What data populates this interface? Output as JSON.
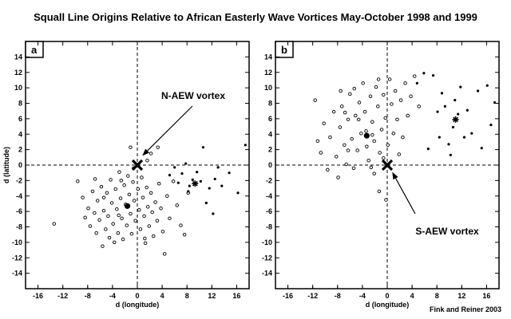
{
  "title": "Squall Line Origins Relative to African Easterly Wave Vortices May-October 1998 and 1999",
  "credit": "Fink and Reiner 2003",
  "chart_data": [
    {
      "type": "scatter",
      "panel": "a",
      "xlabel": "d (longitude)",
      "ylabel": "d (latitude)",
      "xlim": [
        -18,
        18
      ],
      "ylim": [
        -16,
        16
      ],
      "xticks": [
        -16,
        -12,
        -8,
        -4,
        0,
        4,
        8,
        12,
        16
      ],
      "xtick_labels": [
        "-16",
        "-12",
        "-8",
        "-4",
        "0",
        "4",
        "8",
        "12",
        "16"
      ],
      "yticks": [
        14,
        12,
        10,
        8,
        6,
        4,
        2,
        0,
        -2,
        -4,
        -6,
        -8,
        -10,
        -12,
        -14
      ],
      "ytick_labels": [
        "14",
        "12",
        "10",
        "8",
        "6",
        "4",
        "2",
        "0",
        "-2",
        "-4",
        "-6",
        "-8",
        "-10",
        "-12",
        "-14"
      ],
      "grid": false,
      "reference_lines": {
        "x": 0,
        "y": 0,
        "style": "dashed"
      },
      "vortex_marker": {
        "x": 0,
        "y": 0
      },
      "annotation": {
        "text": "N-AEW vortex",
        "arrow_to": [
          0.8,
          1.2
        ]
      },
      "series": [
        {
          "marker": "open-circle",
          "points": [
            [
              -13.4,
              -7.6
            ],
            [
              -9.6,
              -2.1
            ],
            [
              -8.8,
              -4.2
            ],
            [
              -8.4,
              -6.8
            ],
            [
              -7.9,
              -5.6
            ],
            [
              -7.6,
              -7.9
            ],
            [
              -7.2,
              -3.4
            ],
            [
              -6.9,
              -6.2
            ],
            [
              -6.6,
              -8.8
            ],
            [
              -6.4,
              -4.6
            ],
            [
              -6.1,
              -7.1
            ],
            [
              -5.8,
              -2.8
            ],
            [
              -5.6,
              -10.5
            ],
            [
              -5.4,
              -5.9
            ],
            [
              -5.1,
              -8.3
            ],
            [
              -4.9,
              -3.6
            ],
            [
              -4.7,
              -6.6
            ],
            [
              -4.5,
              -9.4
            ],
            [
              -4.3,
              -1.9
            ],
            [
              -4.1,
              -4.9
            ],
            [
              -3.9,
              -7.6
            ],
            [
              -3.7,
              -10.0
            ],
            [
              -3.5,
              -3.1
            ],
            [
              -3.3,
              -5.7
            ],
            [
              -3.1,
              -8.8
            ],
            [
              -2.9,
              -0.9
            ],
            [
              -2.7,
              -4.3
            ],
            [
              -2.5,
              -6.9
            ],
            [
              -2.3,
              -9.6
            ],
            [
              -2.1,
              -2.6
            ],
            [
              -1.9,
              -5.1
            ],
            [
              -1.7,
              -7.8
            ],
            [
              -1.5,
              -1.4
            ],
            [
              -1.3,
              -3.8
            ],
            [
              -1.1,
              -6.3
            ],
            [
              -0.9,
              -8.9
            ],
            [
              -0.7,
              -2.2
            ],
            [
              -0.5,
              -4.6
            ],
            [
              -0.3,
              -7.2
            ],
            [
              0.1,
              -3.1
            ],
            [
              0.3,
              -5.8
            ],
            [
              0.5,
              -8.3
            ],
            [
              0.7,
              -1.6
            ],
            [
              0.9,
              -4.2
            ],
            [
              1.1,
              -6.6
            ],
            [
              1.3,
              -10.1
            ],
            [
              1.5,
              -2.9
            ],
            [
              1.7,
              -5.4
            ],
            [
              1.9,
              -7.9
            ],
            [
              2.2,
              -3.6
            ],
            [
              2.4,
              -6.1
            ],
            [
              2.6,
              -9.2
            ],
            [
              2.9,
              -4.8
            ],
            [
              3.2,
              -7.2
            ],
            [
              3.5,
              -2.4
            ],
            [
              3.8,
              -5.6
            ],
            [
              4.1,
              -8.6
            ],
            [
              4.4,
              -11.5
            ],
            [
              4.8,
              -4.0
            ],
            [
              5.2,
              -6.9
            ],
            [
              5.8,
              -2.1
            ],
            [
              6.4,
              -5.2
            ],
            [
              7.0,
              -7.8
            ],
            [
              7.6,
              -9.0
            ],
            [
              8.2,
              -3.6
            ],
            [
              2.2,
              1.5
            ],
            [
              1.6,
              0.6
            ],
            [
              3.3,
              2.3
            ],
            [
              -1.1,
              2.3
            ],
            [
              -0.6,
              -0.4
            ],
            [
              -2.6,
              -2.0
            ],
            [
              -5.4,
              -4.2
            ],
            [
              -6.8,
              -1.8
            ],
            [
              -3.0,
              -6.5
            ],
            [
              1.2,
              -9.5
            ]
          ]
        },
        {
          "marker": "filled-small",
          "points": [
            [
              5.2,
              -1.3
            ],
            [
              6.0,
              -0.3
            ],
            [
              6.6,
              -2.3
            ],
            [
              7.2,
              -1.1
            ],
            [
              7.8,
              0.2
            ],
            [
              8.4,
              -2.7
            ],
            [
              8.9,
              -1.9
            ],
            [
              9.6,
              -0.9
            ],
            [
              10.2,
              -2.1
            ],
            [
              10.6,
              2.3
            ],
            [
              11.1,
              -4.9
            ],
            [
              11.6,
              -3.0
            ],
            [
              12.2,
              -6.3
            ],
            [
              12.5,
              -1.8
            ],
            [
              13.0,
              -0.3
            ],
            [
              13.6,
              -2.7
            ],
            [
              14.8,
              -1.0
            ],
            [
              16.2,
              -3.6
            ],
            [
              17.4,
              2.6
            ],
            [
              8.2,
              -3.4
            ]
          ]
        },
        {
          "marker": "filled-dot",
          "points": [
            [
              -1.6,
              -5.3
            ]
          ]
        },
        {
          "marker": "asterisk",
          "points": [
            [
              9.3,
              -2.4
            ]
          ]
        }
      ]
    },
    {
      "type": "scatter",
      "panel": "b",
      "xlabel": "d (longitude)",
      "ylabel": "",
      "xlim": [
        -18,
        18
      ],
      "ylim": [
        -16,
        16
      ],
      "xticks": [
        -16,
        -12,
        -8,
        -4,
        0,
        4,
        8,
        12,
        16
      ],
      "xtick_labels": [
        "-16",
        "-12",
        "-8",
        "-4",
        "0",
        "4",
        "8",
        "12",
        "16"
      ],
      "yticks": [
        14,
        12,
        10,
        8,
        6,
        4,
        2,
        0,
        -2,
        -4,
        -6,
        -8,
        -10,
        -12,
        -14
      ],
      "ytick_labels": [
        "14",
        "12",
        "10",
        "8",
        "6",
        "4",
        "2",
        "0",
        "-2",
        "-4",
        "-6",
        "-8",
        "-10",
        "-12",
        "-14"
      ],
      "grid": false,
      "reference_lines": {
        "x": 0,
        "y": 0,
        "style": "dashed"
      },
      "vortex_marker": {
        "x": 0,
        "y": 0
      },
      "annotation": {
        "text": "S-AEW vortex",
        "arrow_to": [
          0.8,
          -0.9
        ]
      },
      "series": [
        {
          "marker": "open-circle",
          "points": [
            [
              -11.6,
              8.4
            ],
            [
              -11.2,
              3.1
            ],
            [
              -10.7,
              1.6
            ],
            [
              -10.2,
              5.4
            ],
            [
              -9.6,
              -0.6
            ],
            [
              -9.2,
              3.6
            ],
            [
              -8.6,
              6.9
            ],
            [
              -8.2,
              1.1
            ],
            [
              -7.9,
              -1.6
            ],
            [
              -7.6,
              4.9
            ],
            [
              -7.3,
              7.6
            ],
            [
              -6.9,
              2.6
            ],
            [
              -6.6,
              0.1
            ],
            [
              -6.3,
              5.9
            ],
            [
              -6.0,
              9.2
            ],
            [
              -5.7,
              3.4
            ],
            [
              -5.4,
              -0.4
            ],
            [
              -5.1,
              6.4
            ],
            [
              -4.8,
              1.9
            ],
            [
              -4.5,
              8.1
            ],
            [
              -4.2,
              4.1
            ],
            [
              -3.9,
              10.6
            ],
            [
              -3.6,
              6.9
            ],
            [
              -3.3,
              2.4
            ],
            [
              -3.0,
              0.6
            ],
            [
              -2.7,
              8.9
            ],
            [
              -2.4,
              5.6
            ],
            [
              -2.1,
              3.1
            ],
            [
              -1.8,
              10.1
            ],
            [
              -1.5,
              7.6
            ],
            [
              -1.2,
              1.6
            ],
            [
              -0.9,
              4.6
            ],
            [
              -0.6,
              9.1
            ],
            [
              -0.3,
              6.1
            ],
            [
              0.1,
              2.6
            ],
            [
              0.4,
              11.1
            ],
            [
              0.7,
              7.9
            ],
            [
              1.0,
              4.1
            ],
            [
              1.3,
              9.6
            ],
            [
              1.6,
              5.9
            ],
            [
              1.9,
              1.4
            ],
            [
              2.2,
              8.4
            ],
            [
              2.5,
              3.6
            ],
            [
              2.9,
              10.6
            ],
            [
              3.3,
              6.4
            ],
            [
              3.8,
              8.9
            ],
            [
              4.4,
              11.5
            ],
            [
              5.1,
              7.6
            ],
            [
              -2.1,
              -1.1
            ],
            [
              -1.3,
              -3.4
            ],
            [
              -2.6,
              -0.3
            ],
            [
              -3.4,
              4.4
            ],
            [
              -4.6,
              5.9
            ],
            [
              -6.3,
              1.9
            ],
            [
              -0.6,
              0.9
            ],
            [
              -0.2,
              -4.5
            ],
            [
              -7.5,
              9.6
            ],
            [
              -1.4,
              11.1
            ],
            [
              -5.3,
              9.9
            ],
            [
              -6.8,
              6.8
            ],
            [
              -2.4,
              3.9
            ]
          ]
        },
        {
          "marker": "filled-small",
          "points": [
            [
              4.8,
              10.6
            ],
            [
              5.9,
              11.9
            ],
            [
              6.6,
              2.1
            ],
            [
              7.4,
              11.6
            ],
            [
              8.1,
              6.9
            ],
            [
              8.4,
              3.6
            ],
            [
              8.8,
              9.3
            ],
            [
              9.3,
              7.6
            ],
            [
              9.9,
              2.7
            ],
            [
              10.2,
              1.3
            ],
            [
              10.6,
              4.9
            ],
            [
              10.9,
              8.4
            ],
            [
              11.4,
              6.6
            ],
            [
              11.8,
              10.1
            ],
            [
              12.4,
              3.6
            ],
            [
              12.9,
              7.1
            ],
            [
              13.6,
              4.1
            ],
            [
              14.6,
              9.6
            ],
            [
              15.2,
              2.2
            ],
            [
              16.1,
              10.3
            ],
            [
              16.7,
              5.2
            ],
            [
              17.3,
              8.1
            ]
          ]
        },
        {
          "marker": "filled-dot",
          "points": [
            [
              -3.3,
              3.8
            ]
          ]
        },
        {
          "marker": "asterisk",
          "points": [
            [
              11.0,
              5.9
            ]
          ]
        }
      ]
    }
  ]
}
